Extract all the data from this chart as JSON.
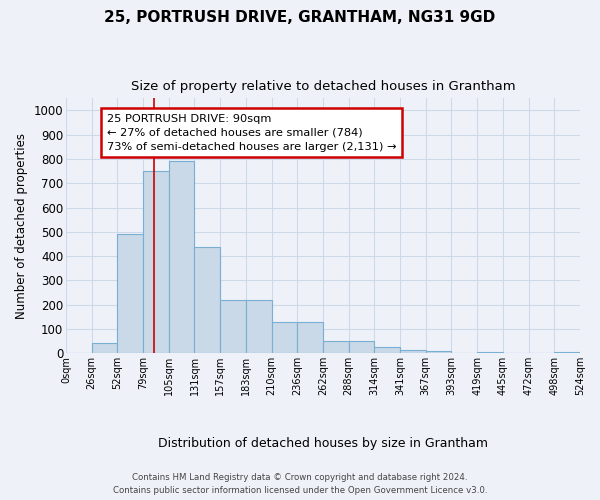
{
  "title1": "25, PORTRUSH DRIVE, GRANTHAM, NG31 9GD",
  "title2": "Size of property relative to detached houses in Grantham",
  "xlabel": "Distribution of detached houses by size in Grantham",
  "ylabel": "Number of detached properties",
  "categories": [
    "0sqm",
    "26sqm",
    "52sqm",
    "79sqm",
    "105sqm",
    "131sqm",
    "157sqm",
    "183sqm",
    "210sqm",
    "236sqm",
    "262sqm",
    "288sqm",
    "314sqm",
    "341sqm",
    "367sqm",
    "393sqm",
    "419sqm",
    "445sqm",
    "472sqm",
    "498sqm",
    "524sqm"
  ],
  "bar_values": [
    0,
    42,
    490,
    750,
    790,
    438,
    220,
    220,
    130,
    130,
    52,
    52,
    27,
    15,
    8,
    0,
    5,
    0,
    0,
    5
  ],
  "ylim": [
    0,
    1050
  ],
  "yticks": [
    0,
    100,
    200,
    300,
    400,
    500,
    600,
    700,
    800,
    900,
    1000
  ],
  "bar_color": "#c9d9e8",
  "bar_edge_color": "#7aafd4",
  "grid_color": "#cdd8e8",
  "annotation_text": "25 PORTRUSH DRIVE: 90sqm\n← 27% of detached houses are smaller (784)\n73% of semi-detached houses are larger (2,131) →",
  "annotation_box_color": "#ffffff",
  "annotation_box_edge": "#cc0000",
  "redline_x": 3.42,
  "footer1": "Contains HM Land Registry data © Crown copyright and database right 2024.",
  "footer2": "Contains public sector information licensed under the Open Government Licence v3.0.",
  "bg_color": "#eef2f8"
}
